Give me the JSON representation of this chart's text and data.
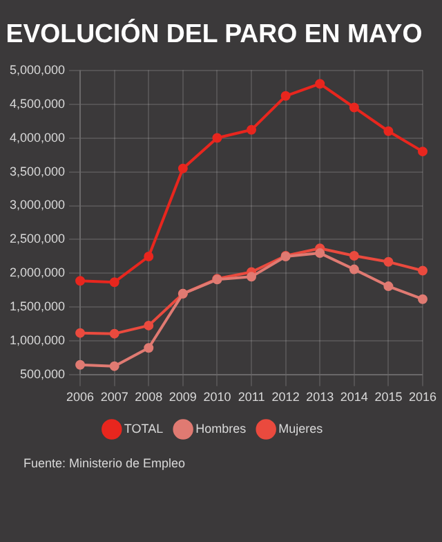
{
  "chart_data": {
    "type": "line",
    "title": "EVOLUCIÓN DEL PARO EN MAYO",
    "categories": [
      "2006",
      "2007",
      "2008",
      "2009",
      "2010",
      "2011",
      "2012",
      "2013",
      "2014",
      "2015",
      "2016"
    ],
    "series": [
      {
        "name": "TOTAL",
        "color": "#e8261e",
        "values": [
          1890000,
          1870000,
          2250000,
          3550000,
          4000000,
          4120000,
          4620000,
          4800000,
          4450000,
          4100000,
          3800000
        ]
      },
      {
        "name": "Hombres",
        "color": "#e07a72",
        "values": [
          650000,
          630000,
          900000,
          1700000,
          1910000,
          1950000,
          2250000,
          2300000,
          2060000,
          1810000,
          1620000
        ]
      },
      {
        "name": "Mujeres",
        "color": "#ea4a3e",
        "values": [
          1120000,
          1110000,
          1230000,
          1700000,
          1920000,
          2020000,
          2260000,
          2370000,
          2260000,
          2170000,
          2040000
        ]
      }
    ],
    "ylim": [
      500000,
      5000000
    ],
    "yticks": [
      {
        "value": 500000,
        "label": "500,000"
      },
      {
        "value": 1000000,
        "label": "1,000,000"
      },
      {
        "value": 1500000,
        "label": "1,500,000"
      },
      {
        "value": 2000000,
        "label": "2,000,000"
      },
      {
        "value": 2500000,
        "label": "2,500,000"
      },
      {
        "value": 3000000,
        "label": "3,000,000"
      },
      {
        "value": 3500000,
        "label": "3,500,000"
      },
      {
        "value": 4000000,
        "label": "4,000,000"
      },
      {
        "value": 4500000,
        "label": "4,500,000"
      },
      {
        "value": 5000000,
        "label": "5,000,000"
      }
    ],
    "grid": true,
    "legend": "bottom",
    "marker": "circle",
    "line_style": "solid",
    "annotations": [
      "Fuente: Ministerio de Empleo"
    ]
  }
}
